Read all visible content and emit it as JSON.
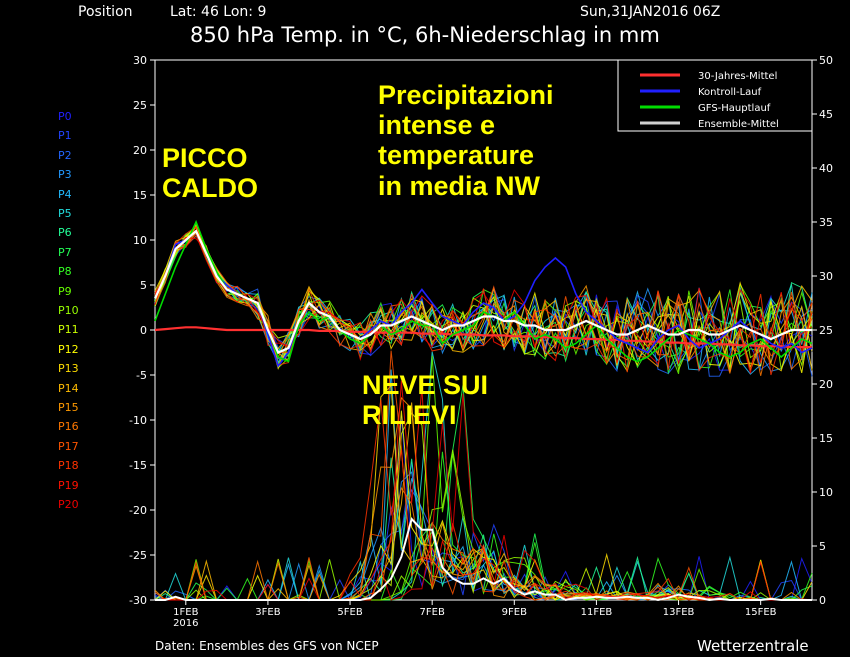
{
  "header": {
    "position": "Position",
    "latlon": "Lat: 46 Lon: 9",
    "run": "Sun,31JAN2016 06Z",
    "title": "850 hPa Temp. in °C, 6h-Niederschlag in mm"
  },
  "annotations": {
    "picco": [
      "PICCO",
      "CALDO"
    ],
    "precip": [
      "Precipitazioni",
      "intense e",
      "temperature",
      "in media NW"
    ],
    "neve": [
      "NEVE SUI",
      "RILIEVI"
    ]
  },
  "members": [
    {
      "label": "P0",
      "color": "#2020ff"
    },
    {
      "label": "P1",
      "color": "#2244ff"
    },
    {
      "label": "P2",
      "color": "#2266ff"
    },
    {
      "label": "P3",
      "color": "#2299ff"
    },
    {
      "label": "P4",
      "color": "#22bbff"
    },
    {
      "label": "P5",
      "color": "#22dddd"
    },
    {
      "label": "P6",
      "color": "#22ff99"
    },
    {
      "label": "P7",
      "color": "#22ff55"
    },
    {
      "label": "P8",
      "color": "#33ff22"
    },
    {
      "label": "P9",
      "color": "#66ff00"
    },
    {
      "label": "P10",
      "color": "#99ff00"
    },
    {
      "label": "P11",
      "color": "#ccff00"
    },
    {
      "label": "P12",
      "color": "#ffff00"
    },
    {
      "label": "P13",
      "color": "#ffdd00"
    },
    {
      "label": "P14",
      "color": "#ffbb00"
    },
    {
      "label": "P15",
      "color": "#ff9900"
    },
    {
      "label": "P16",
      "color": "#ff7700"
    },
    {
      "label": "P17",
      "color": "#ff5500"
    },
    {
      "label": "P18",
      "color": "#ff3300"
    },
    {
      "label": "P19",
      "color": "#ff1100"
    },
    {
      "label": "P20",
      "color": "#ee0000"
    }
  ],
  "footer": {
    "source": "Daten: Ensembles des GFS von NCEP",
    "brand": "Wetterzentrale"
  },
  "chart_data": {
    "type": "line",
    "xlabel": "",
    "ylabel": "",
    "ylim": [
      -30,
      30
    ],
    "y2lim": [
      0,
      50
    ],
    "yticks": [
      30,
      25,
      20,
      15,
      10,
      5,
      0,
      -5,
      -10,
      -15,
      -20,
      -25,
      -30
    ],
    "y2ticks": [
      50,
      45,
      40,
      35,
      30,
      25,
      20,
      15,
      10,
      5,
      0
    ],
    "x_tick_labels": [
      "1FEB",
      "3FEB",
      "5FEB",
      "7FEB",
      "9FEB",
      "11FEB",
      "13FEB",
      "15FEB"
    ],
    "x_tick_sublabel": "2016",
    "grid": false,
    "legend_position": "top-right",
    "legend": [
      {
        "name": "30-Jahres-Mittel",
        "color": "#ff3030"
      },
      {
        "name": "Kontroll-Lauf",
        "color": "#2020ff"
      },
      {
        "name": "GFS-Hauptlauf",
        "color": "#00dd00"
      },
      {
        "name": "Ensemble-Mittel",
        "color": "#d0d0d0"
      }
    ],
    "x_hours": [
      0,
      6,
      12,
      18,
      24,
      30,
      36,
      42,
      48,
      54,
      60,
      66,
      72,
      78,
      84,
      90,
      96,
      102,
      108,
      114,
      120,
      126,
      132,
      138,
      144,
      150,
      156,
      162,
      168,
      174,
      180,
      186,
      192,
      198,
      204,
      210,
      216,
      222,
      228,
      234,
      240,
      246,
      252,
      258,
      264,
      270,
      276,
      282,
      288,
      294,
      300,
      306,
      312,
      318,
      324,
      330,
      336,
      342,
      348,
      354,
      360,
      366,
      372,
      378,
      384
    ],
    "series": [
      {
        "name": "30-Jahres-Mittel",
        "color": "#ff3030",
        "values": [
          0,
          0.1,
          0.2,
          0.3,
          0.3,
          0.2,
          0.1,
          0,
          0,
          0,
          0,
          0,
          0,
          0,
          0,
          0,
          -0.1,
          -0.1,
          -0.1,
          -0.2,
          -0.2,
          -0.2,
          -0.3,
          -0.3,
          -0.3,
          -0.3,
          -0.4,
          -0.4,
          -0.4,
          -0.5,
          -0.5,
          -0.5,
          -0.6,
          -0.6,
          -0.6,
          -0.7,
          -0.7,
          -0.7,
          -0.8,
          -0.8,
          -0.9,
          -0.9,
          -1,
          -1,
          -1.1,
          -1.1,
          -1.2,
          -1.2,
          -1.3,
          -1.3,
          -1.4,
          -1.4,
          -1.5,
          -1.5,
          -1.5,
          -1.6,
          -1.6,
          -1.7,
          -1.7,
          -1.8,
          -1.8,
          -1.8,
          -1.9,
          -1.9,
          -1.9
        ]
      },
      {
        "name": "Kontroll-Lauf",
        "color": "#2020ff",
        "values": [
          3.5,
          6,
          9.5,
          10,
          11,
          8.5,
          6,
          5,
          4,
          3.5,
          3,
          -0.5,
          -4,
          -2.5,
          1,
          3,
          2,
          1.5,
          0,
          -0.5,
          -1,
          0,
          1,
          0.5,
          2,
          3,
          4.5,
          3,
          1.5,
          1,
          0.5,
          2,
          3,
          2.5,
          1,
          1.5,
          3,
          5.5,
          7,
          8,
          7,
          4,
          2,
          1,
          0,
          -1,
          -1.5,
          -2,
          -2.5,
          -1,
          0,
          0.5,
          -1,
          -2,
          -1.5,
          -1,
          0,
          1,
          0,
          -0.5,
          -1.5,
          -2,
          -1.5,
          -2.5,
          -2
        ]
      },
      {
        "name": "GFS-Hauptlauf",
        "color": "#00dd00",
        "values": [
          1,
          4,
          7,
          9.5,
          12,
          9,
          6.5,
          4.5,
          4,
          3.5,
          3,
          0,
          -3,
          -3.5,
          0.5,
          2,
          1,
          1.5,
          0,
          -1,
          -1.5,
          -0.5,
          0.5,
          -0.5,
          0,
          1,
          0.5,
          0.5,
          -1.5,
          -0.5,
          0,
          0.5,
          2,
          1.5,
          1,
          2,
          0.5,
          -1,
          -0.5,
          -1,
          -2,
          -1.5,
          -0.5,
          0.5,
          -1,
          -2,
          -3,
          -3.5,
          -3,
          -2,
          -1,
          0,
          -0.5,
          -1,
          -1.5,
          -2.5,
          -3,
          -2.5,
          -1.5,
          -1,
          -2,
          -3,
          -2,
          -1,
          -1.5
        ]
      },
      {
        "name": "Ensemble-Mittel",
        "color": "#d0d0d0",
        "values": [
          3.5,
          6,
          9,
          10,
          11,
          8.5,
          6,
          4.5,
          4,
          3.5,
          3,
          0,
          -2.5,
          -2,
          1,
          3,
          2,
          1.5,
          0,
          -0.5,
          -1,
          -0.5,
          0.5,
          0.5,
          1,
          1.5,
          1,
          0.5,
          0,
          0.5,
          0.5,
          1,
          1.5,
          1.5,
          1,
          1,
          0.5,
          0.5,
          0,
          0,
          0,
          0.5,
          1,
          0.5,
          0,
          -0.5,
          -0.5,
          0,
          0.5,
          0,
          -0.5,
          -0.5,
          0,
          0,
          -0.5,
          -0.5,
          0,
          0.5,
          0,
          -0.5,
          -1,
          -0.5,
          0,
          0,
          0
        ]
      }
    ],
    "precip_series": [
      {
        "name": "Ensemble-Mittel",
        "color": "#ffffff",
        "values": [
          0,
          0,
          0.3,
          0,
          0,
          0,
          0,
          0,
          0,
          0,
          0,
          0,
          0,
          0,
          0,
          0,
          0,
          0,
          0,
          0,
          0,
          0.2,
          1,
          2,
          4,
          7.5,
          6.5,
          6.5,
          3,
          2,
          1.5,
          1.5,
          2,
          1.5,
          2,
          1,
          0.5,
          0.8,
          0.5,
          0.5,
          0,
          0.2,
          0.2,
          0.3,
          0.2,
          0.2,
          0.3,
          0.2,
          0.2,
          0,
          0.2,
          0.5,
          0.3,
          0.2,
          0,
          0.1,
          0,
          0,
          0,
          0,
          0.1,
          0,
          0,
          0,
          0
        ]
      }
    ]
  }
}
